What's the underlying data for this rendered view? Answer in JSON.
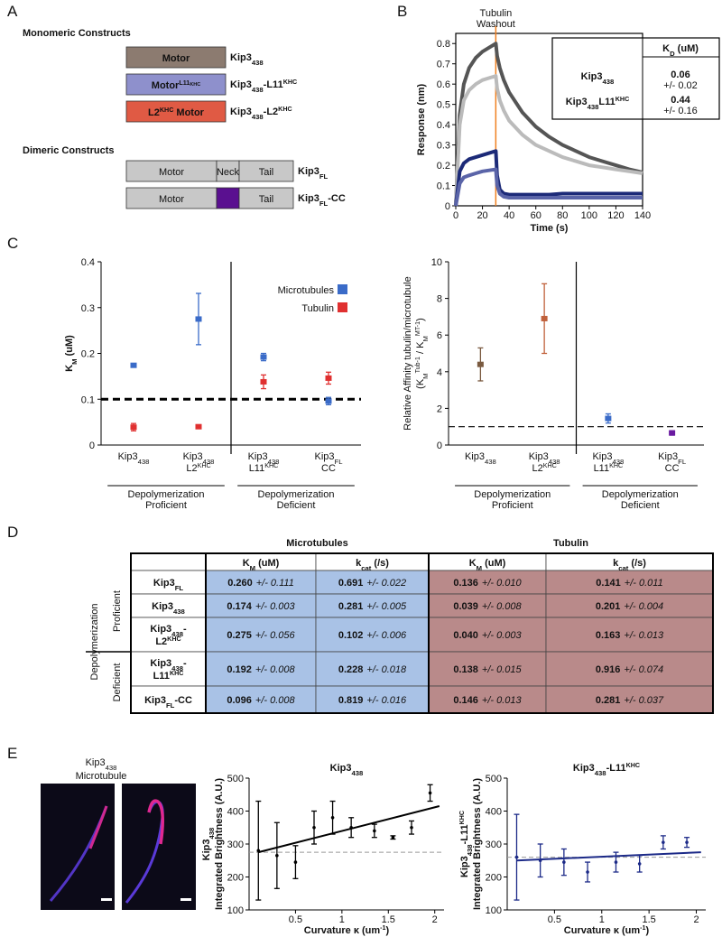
{
  "A": {
    "letter": "A",
    "monomeric_title": "Monomeric Constructs",
    "monomeric": [
      {
        "domain": [
          "Motor"
        ],
        "color": "#8c7b70",
        "label": [
          "Kip3",
          {
            "text": "438",
            "pos": "sub"
          }
        ]
      },
      {
        "domain": [
          "Motor",
          {
            "text": "L11",
            "pos": "sup"
          },
          {
            "text": "KHC",
            "pos": "sup2"
          }
        ],
        "color": "#8e90cc",
        "label": [
          "Kip3",
          {
            "text": "438",
            "pos": "sub"
          },
          "-L11",
          {
            "text": "KHC",
            "pos": "sup"
          }
        ]
      },
      {
        "domain": [
          "L2",
          {
            "text": "KHC",
            "pos": "sup"
          },
          " Motor"
        ],
        "color": "#e05a44",
        "label": [
          "Kip3",
          {
            "text": "438",
            "pos": "sub"
          },
          "-L2",
          {
            "text": "KHC",
            "pos": "sup"
          }
        ]
      }
    ],
    "dimeric_title": "Dimeric Constructs",
    "dimeric": [
      {
        "domains": [
          {
            "text": "Motor",
            "color": "#c8c8c8"
          },
          {
            "text": "Neck",
            "color": "#c8c8c8"
          },
          {
            "text": "Tail",
            "color": "#c8c8c8"
          }
        ],
        "label": [
          "Kip3",
          {
            "text": "FL",
            "pos": "sub"
          }
        ]
      },
      {
        "domains": [
          {
            "text": "Motor",
            "color": "#c8c8c8"
          },
          {
            "color": "#5a1090"
          },
          {
            "text": "Tail",
            "color": "#c8c8c8"
          }
        ],
        "label": [
          "Kip3",
          {
            "text": "FL",
            "pos": "sub"
          },
          "-CC"
        ]
      }
    ]
  },
  "B": {
    "letter": "B",
    "chart": {
      "type": "line",
      "x_label": "Time (s)",
      "y_label": "Response (nm)",
      "xlim": [
        0,
        140
      ],
      "ylim": [
        0,
        0.85
      ],
      "xticks": [
        0,
        20,
        40,
        60,
        80,
        100,
        120,
        140
      ],
      "yticks": [
        0,
        0.1,
        0.2,
        0.3,
        0.4,
        0.5,
        0.6,
        0.7,
        0.8
      ],
      "x": [
        0,
        3,
        6,
        10,
        15,
        20,
        25,
        30,
        31,
        33,
        36,
        40,
        50,
        60,
        70,
        80,
        90,
        100,
        110,
        120,
        130,
        140
      ],
      "series": [
        {
          "color": "#555555",
          "values": [
            0,
            0.45,
            0.6,
            0.68,
            0.73,
            0.76,
            0.78,
            0.8,
            0.74,
            0.68,
            0.62,
            0.56,
            0.46,
            0.39,
            0.34,
            0.3,
            0.27,
            0.24,
            0.22,
            0.2,
            0.18,
            0.165
          ]
        },
        {
          "color": "#bbbbbb",
          "values": [
            0,
            0.4,
            0.52,
            0.57,
            0.6,
            0.62,
            0.63,
            0.64,
            0.58,
            0.52,
            0.47,
            0.42,
            0.35,
            0.3,
            0.27,
            0.24,
            0.22,
            0.2,
            0.19,
            0.18,
            0.17,
            0.16
          ]
        },
        {
          "color": "#1c2a78",
          "values": [
            0,
            0.17,
            0.21,
            0.23,
            0.24,
            0.25,
            0.26,
            0.27,
            0.15,
            0.08,
            0.06,
            0.055,
            0.055,
            0.055,
            0.055,
            0.06,
            0.06,
            0.06,
            0.06,
            0.06,
            0.06,
            0.06
          ]
        },
        {
          "color": "#5a64a8",
          "values": [
            0,
            0.11,
            0.14,
            0.15,
            0.16,
            0.17,
            0.175,
            0.18,
            0.1,
            0.06,
            0.045,
            0.04,
            0.04,
            0.04,
            0.04,
            0.04,
            0.04,
            0.04,
            0.04,
            0.04,
            0.04,
            0.04
          ]
        }
      ],
      "annotation": {
        "text": [
          "Tubulin",
          "Washout"
        ],
        "x": 30,
        "color": "#f08020"
      },
      "inset": {
        "header": [
          "K",
          {
            "text": "D",
            "pos": "sub"
          },
          " (uM)"
        ],
        "rows": [
          {
            "label": [
              "Kip3",
              {
                "text": "438",
                "pos": "sub"
              }
            ],
            "value": 0.06,
            "error": "+/- 0.02",
            "color": "#555555"
          },
          {
            "label": [
              "Kip3",
              {
                "text": "438",
                "pos": "sub"
              },
              "L11",
              {
                "text": "KHC",
                "pos": "sup"
              }
            ],
            "value": 0.44,
            "error": "+/- 0.16",
            "color": "#2a2a8a"
          }
        ]
      }
    }
  },
  "C": {
    "letter": "C",
    "charts": [
      {
        "type": "errorbar",
        "y_label": [
          [
            "K",
            {
              "text": "M",
              "pos": "sub"
            },
            " (uM)"
          ]
        ],
        "ylim": [
          0,
          0.4
        ],
        "yticks": [
          0,
          0.1,
          0.2,
          0.3,
          0.4
        ],
        "reference_line": 0.1,
        "legend_position": "upper right",
        "groups": [
          {
            "label": [
              "Depolymerization",
              "Proficient"
            ],
            "categories": [
              [
                [
                  "Kip3",
                  {
                    "text": "438",
                    "pos": "sub"
                  }
                ]
              ],
              [
                [
                  "Kip3",
                  {
                    "text": "438",
                    "pos": "sub"
                  }
                ],
                [
                  "L2",
                  {
                    "text": "KHC",
                    "pos": "sup"
                  }
                ]
              ]
            ]
          },
          {
            "label": [
              "Depolymerization",
              "Deficient"
            ],
            "categories": [
              [
                [
                  "Kip3",
                  {
                    "text": "438",
                    "pos": "sub"
                  }
                ],
                [
                  "L11",
                  {
                    "text": "KHC",
                    "pos": "sup"
                  }
                ]
              ],
              [
                [
                  "Kip3",
                  {
                    "text": "FL",
                    "pos": "sub"
                  }
                ],
                [
                  "CC"
                ]
              ]
            ]
          }
        ],
        "series": [
          {
            "name": "Microtubules",
            "color": "#3a6bc8",
            "values": [
              0.174,
              0.275,
              0.192,
              0.096
            ],
            "errors": [
              0.003,
              0.056,
              0.008,
              0.008
            ]
          },
          {
            "name": "Tubulin",
            "color": "#e03030",
            "values": [
              0.039,
              0.04,
              0.138,
              0.146
            ],
            "errors": [
              0.008,
              0.003,
              0.015,
              0.013
            ]
          }
        ]
      },
      {
        "type": "errorbar",
        "y_label": [
          [
            "Relative Affinity tubulin/microtubule"
          ],
          [
            "(K",
            {
              "text": "M",
              "pos": "sub"
            },
            {
              "text": "Tub-1",
              "pos": "sup"
            },
            " / K",
            {
              "text": "M",
              "pos": "sub"
            },
            {
              "text": "MT-1",
              "pos": "sup"
            },
            ")"
          ]
        ],
        "ylim": [
          0,
          10
        ],
        "yticks": [
          0,
          2,
          4,
          6,
          8,
          10
        ],
        "reference_line": 1,
        "groups": [
          {
            "label": [
              "Depolymerization",
              "Proficient"
            ],
            "categories": [
              [
                [
                  "Kip3",
                  {
                    "text": "438",
                    "pos": "sub"
                  }
                ]
              ],
              [
                [
                  "Kip3",
                  {
                    "text": "438",
                    "pos": "sub"
                  }
                ],
                [
                  "L2",
                  {
                    "text": "KHC",
                    "pos": "sup"
                  }
                ]
              ]
            ]
          },
          {
            "label": [
              "Depolymerization",
              "Deficient"
            ],
            "categories": [
              [
                [
                  "Kip3",
                  {
                    "text": "438",
                    "pos": "sub"
                  }
                ],
                [
                  "L11",
                  {
                    "text": "KHC",
                    "pos": "sup"
                  }
                ]
              ],
              [
                [
                  "Kip3",
                  {
                    "text": "FL",
                    "pos": "sub"
                  }
                ],
                [
                  "CC"
                ]
              ]
            ]
          }
        ],
        "series": [
          {
            "colors": [
              "#7a5a40",
              "#c0603a",
              "#3a6bc8",
              "#6a1aa0"
            ],
            "values": [
              4.4,
              6.9,
              1.45,
              0.66
            ],
            "errors": [
              0.9,
              1.9,
              0.25,
              0.12
            ]
          }
        ]
      }
    ]
  },
  "D": {
    "letter": "D",
    "groups": [
      {
        "title": "Microtubules",
        "color": "#a9c2e6",
        "columns": [
          [
            "K",
            {
              "text": "M",
              "pos": "sub"
            },
            " (uM)"
          ],
          [
            "k",
            {
              "text": "cat",
              "pos": "sub"
            },
            " (/s)"
          ]
        ]
      },
      {
        "title": "Tubulin",
        "color": "#b98a8a",
        "columns": [
          [
            "K",
            {
              "text": "M",
              "pos": "sub"
            },
            " (uM)"
          ],
          [
            "k",
            {
              "text": "cat",
              "pos": "sub"
            },
            " (/s)"
          ]
        ]
      }
    ],
    "side_title": "Depolymerization",
    "side_groups": [
      {
        "label": "Proficient",
        "rows": [
          {
            "label": [
              [
                "Kip3",
                {
                  "text": "FL",
                  "pos": "sub"
                }
              ]
            ],
            "cells": [
              [
                "0.260",
                "+/- 0.111"
              ],
              [
                "0.691",
                "+/- 0.022"
              ],
              [
                "0.136",
                "+/- 0.010"
              ],
              [
                "0.141",
                "+/- 0.011"
              ]
            ]
          },
          {
            "label": [
              [
                "Kip3",
                {
                  "text": "438",
                  "pos": "sub"
                }
              ]
            ],
            "cells": [
              [
                "0.174",
                "+/- 0.003"
              ],
              [
                "0.281",
                "+/- 0.005"
              ],
              [
                "0.039",
                "+/- 0.008"
              ],
              [
                "0.201",
                "+/- 0.004"
              ]
            ]
          },
          {
            "label": [
              [
                "Kip3",
                {
                  "text": "438",
                  "pos": "sub"
                },
                "-"
              ],
              [
                "L2",
                {
                  "text": "KHC",
                  "pos": "sup"
                }
              ]
            ],
            "cells": [
              [
                "0.275",
                "+/- 0.056"
              ],
              [
                "0.102",
                "+/- 0.006"
              ],
              [
                "0.040",
                "+/- 0.003"
              ],
              [
                "0.163",
                "+/- 0.013"
              ]
            ]
          }
        ]
      },
      {
        "label": "Deficient",
        "rows": [
          {
            "label": [
              [
                "Kip3",
                {
                  "text": "438",
                  "pos": "sub"
                },
                "-"
              ],
              [
                "L11",
                {
                  "text": "KHC",
                  "pos": "sup"
                }
              ]
            ],
            "cells": [
              [
                "0.192",
                "+/- 0.008"
              ],
              [
                "0.228",
                "+/- 0.018"
              ],
              [
                "0.138",
                "+/- 0.015"
              ],
              [
                "0.916",
                "+/- 0.074"
              ]
            ]
          },
          {
            "label": [
              [
                "Kip3",
                {
                  "text": "FL",
                  "pos": "sub"
                },
                "-CC"
              ]
            ],
            "cells": [
              [
                "0.096",
                "+/- 0.008"
              ],
              [
                "0.819",
                "+/- 0.016"
              ],
              [
                "0.146",
                "+/- 0.013"
              ],
              [
                "0.281",
                "+/- 0.037"
              ]
            ]
          }
        ]
      }
    ]
  },
  "E": {
    "letter": "E",
    "image_labels": [
      {
        "text": [
          "Kip3",
          {
            "text": "438",
            "pos": "sub"
          }
        ],
        "color": "#e02020"
      },
      {
        "text": [
          "Microtubule"
        ],
        "color": "#3030c0"
      }
    ],
    "plots": [
      {
        "type": "scatter",
        "title": [
          "Kip3",
          {
            "text": "438",
            "pos": "sub"
          }
        ],
        "color": "#000000",
        "y_label": [
          [
            "Kip3",
            {
              "text": "438",
              "pos": "sub"
            }
          ],
          [
            "Integrated Brightness (A.U.)"
          ]
        ],
        "x_label": [
          "Curvature κ (um",
          {
            "text": "-1",
            "pos": "sup"
          },
          ")"
        ],
        "xlim": [
          0,
          2.1
        ],
        "ylim": [
          100,
          500
        ],
        "xticks": [
          0.5,
          1,
          1.5,
          2
        ],
        "yticks": [
          100,
          200,
          300,
          400,
          500
        ],
        "x": [
          0.1,
          0.3,
          0.5,
          0.7,
          0.9,
          1.1,
          1.35,
          1.55,
          1.75,
          1.95
        ],
        "values": [
          280,
          265,
          245,
          350,
          380,
          350,
          340,
          320,
          350,
          455
        ],
        "errors": [
          150,
          100,
          50,
          50,
          50,
          30,
          20,
          5,
          20,
          25
        ],
        "fit": {
          "x": [
            0.1,
            2.05
          ],
          "y": [
            275,
            415
          ]
        },
        "reference_line": 275
      },
      {
        "type": "scatter",
        "title": [
          "Kip3",
          {
            "text": "438",
            "pos": "sub"
          },
          "-L11",
          {
            "text": "KHC",
            "pos": "sup"
          }
        ],
        "color": "#1c2a88",
        "y_label": [
          [
            "Kip3",
            {
              "text": "438",
              "pos": "sub"
            },
            "-L11",
            {
              "text": "KHC",
              "pos": "sup"
            }
          ],
          [
            "Integrated Brightness (A.U.)"
          ]
        ],
        "x_label": [
          "Curvature κ (um",
          {
            "text": "-1",
            "pos": "sup"
          },
          ")"
        ],
        "xlim": [
          0,
          2.1
        ],
        "ylim": [
          100,
          500
        ],
        "xticks": [
          0.5,
          1,
          1.5,
          2
        ],
        "yticks": [
          100,
          200,
          300,
          400,
          500
        ],
        "x": [
          0.1,
          0.35,
          0.6,
          0.85,
          1.15,
          1.4,
          1.65,
          1.9
        ],
        "values": [
          260,
          250,
          245,
          215,
          245,
          240,
          305,
          305
        ],
        "errors": [
          130,
          50,
          40,
          30,
          30,
          25,
          20,
          15
        ],
        "fit": {
          "x": [
            0.1,
            2.05
          ],
          "y": [
            250,
            275
          ]
        },
        "reference_line": 260
      }
    ]
  }
}
